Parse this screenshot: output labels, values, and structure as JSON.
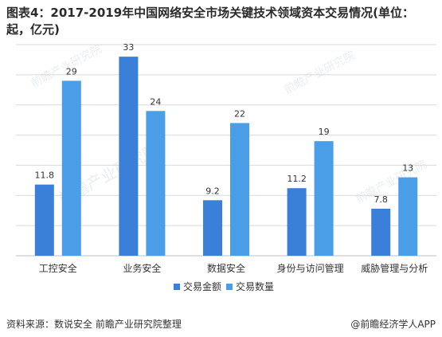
{
  "title": "图表4：2017-2019年中国网络安全市场关键技术领域资本交易情况(单位：起，亿元)",
  "source": "资料来源：数说安全 前瞻产业研究院整理",
  "credit": "@前瞻经济学人APP",
  "watermark": "前瞻产业研究院",
  "colors": {
    "series1": "#3a7fd8",
    "series2": "#4a9ee8",
    "axis": "#bfbfbf",
    "grid": "#d9d9d9"
  },
  "chart_data": {
    "type": "bar",
    "title": "图表4：2017-2019年中国网络安全市场关键技术领域资本交易情况(单位：起，亿元)",
    "categories": [
      "工控安全",
      "业务安全",
      "数据安全",
      "身份与访问管理",
      "威胁管理与分析"
    ],
    "series": [
      {
        "name": "交易金额",
        "values": [
          11.8,
          33,
          9.2,
          11.2,
          7.8
        ],
        "labels": [
          "11.8",
          "33",
          "9.2",
          "11.2",
          "7.8"
        ]
      },
      {
        "name": "交易数量",
        "values": [
          29,
          24,
          22,
          19,
          13
        ],
        "labels": [
          "29",
          "24",
          "22",
          "19",
          "13"
        ]
      }
    ],
    "ylim": [
      0,
      35
    ],
    "grid": true,
    "legend": "bottom"
  }
}
